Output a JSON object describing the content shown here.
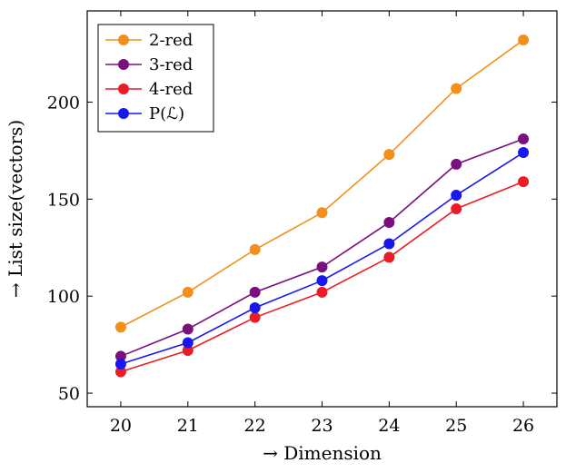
{
  "chart_data": {
    "type": "line",
    "xlabel": "→ Dimension",
    "ylabel": "→ List size(vectors)",
    "x": [
      20,
      21,
      22,
      23,
      24,
      25,
      26
    ],
    "xlim": [
      19.5,
      26.5
    ],
    "ylim": [
      43,
      247
    ],
    "yticks": [
      50,
      100,
      150,
      200
    ],
    "grid": false,
    "legend_position": "top-left",
    "series": [
      {
        "name": "2-red",
        "color": "#f39019",
        "values": [
          84,
          102,
          124,
          143,
          173,
          207,
          232
        ]
      },
      {
        "name": "3-red",
        "color": "#7b0f80",
        "values": [
          69,
          83,
          102,
          115,
          138,
          168,
          181
        ]
      },
      {
        "name": "4-red",
        "color": "#ec1c24",
        "values": [
          61,
          72,
          89,
          102,
          120,
          145,
          159
        ]
      },
      {
        "name": "P(ℒ)",
        "color": "#1818ee",
        "values": [
          65,
          76,
          94,
          108,
          127,
          152,
          174
        ]
      }
    ]
  }
}
